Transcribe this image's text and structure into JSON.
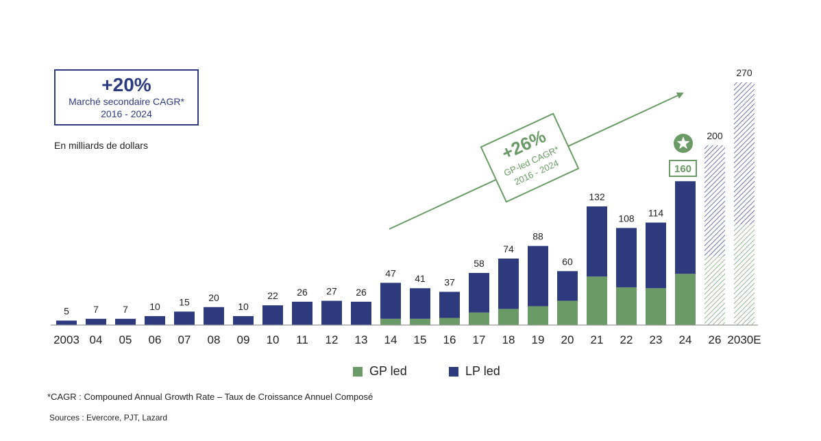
{
  "cagr_total": {
    "value": "+20%",
    "label": "Marché secondaire CAGR*",
    "period": "2016 - 2024"
  },
  "unit_note": "En milliards de dollars",
  "cagr_gp": {
    "value": "+26%",
    "label": "GP-led CAGR*",
    "period": "2016 - 2024"
  },
  "footnote": "*CAGR : Compouned Annual Growth Rate – Taux de Croissance Annuel Composé",
  "sources": "Sources : Evercore, PJT, Lazard",
  "highlight_icon": "star-icon",
  "colors": {
    "gp": "#6a9a66",
    "lp": "#2e3a7e"
  },
  "chart_data": {
    "type": "bar",
    "stacked": true,
    "categories": [
      "2003",
      "04",
      "05",
      "06",
      "07",
      "08",
      "09",
      "10",
      "11",
      "12",
      "13",
      "14",
      "15",
      "16",
      "17",
      "18",
      "19",
      "20",
      "21",
      "22",
      "23",
      "24",
      "26",
      "2030E"
    ],
    "totals": [
      5,
      7,
      7,
      10,
      15,
      20,
      10,
      22,
      26,
      27,
      26,
      47,
      41,
      37,
      58,
      74,
      88,
      60,
      132,
      108,
      114,
      160,
      200,
      270
    ],
    "series": [
      {
        "name": "GP led",
        "values": [
          0,
          0,
          0,
          0,
          0,
          0,
          0,
          0,
          0,
          0,
          0,
          7,
          7,
          8,
          14,
          18,
          21,
          27,
          54,
          42,
          41,
          57,
          77,
          112
        ]
      },
      {
        "name": "LP led",
        "values": [
          5,
          7,
          7,
          10,
          15,
          20,
          10,
          22,
          26,
          27,
          26,
          40,
          34,
          29,
          44,
          56,
          67,
          33,
          78,
          66,
          73,
          103,
          123,
          158
        ]
      }
    ],
    "projected_categories": [
      "26",
      "2030E"
    ],
    "highlighted_category": "24",
    "ylim": [
      0,
      270
    ],
    "grid": false,
    "legend_position": "bottom"
  }
}
